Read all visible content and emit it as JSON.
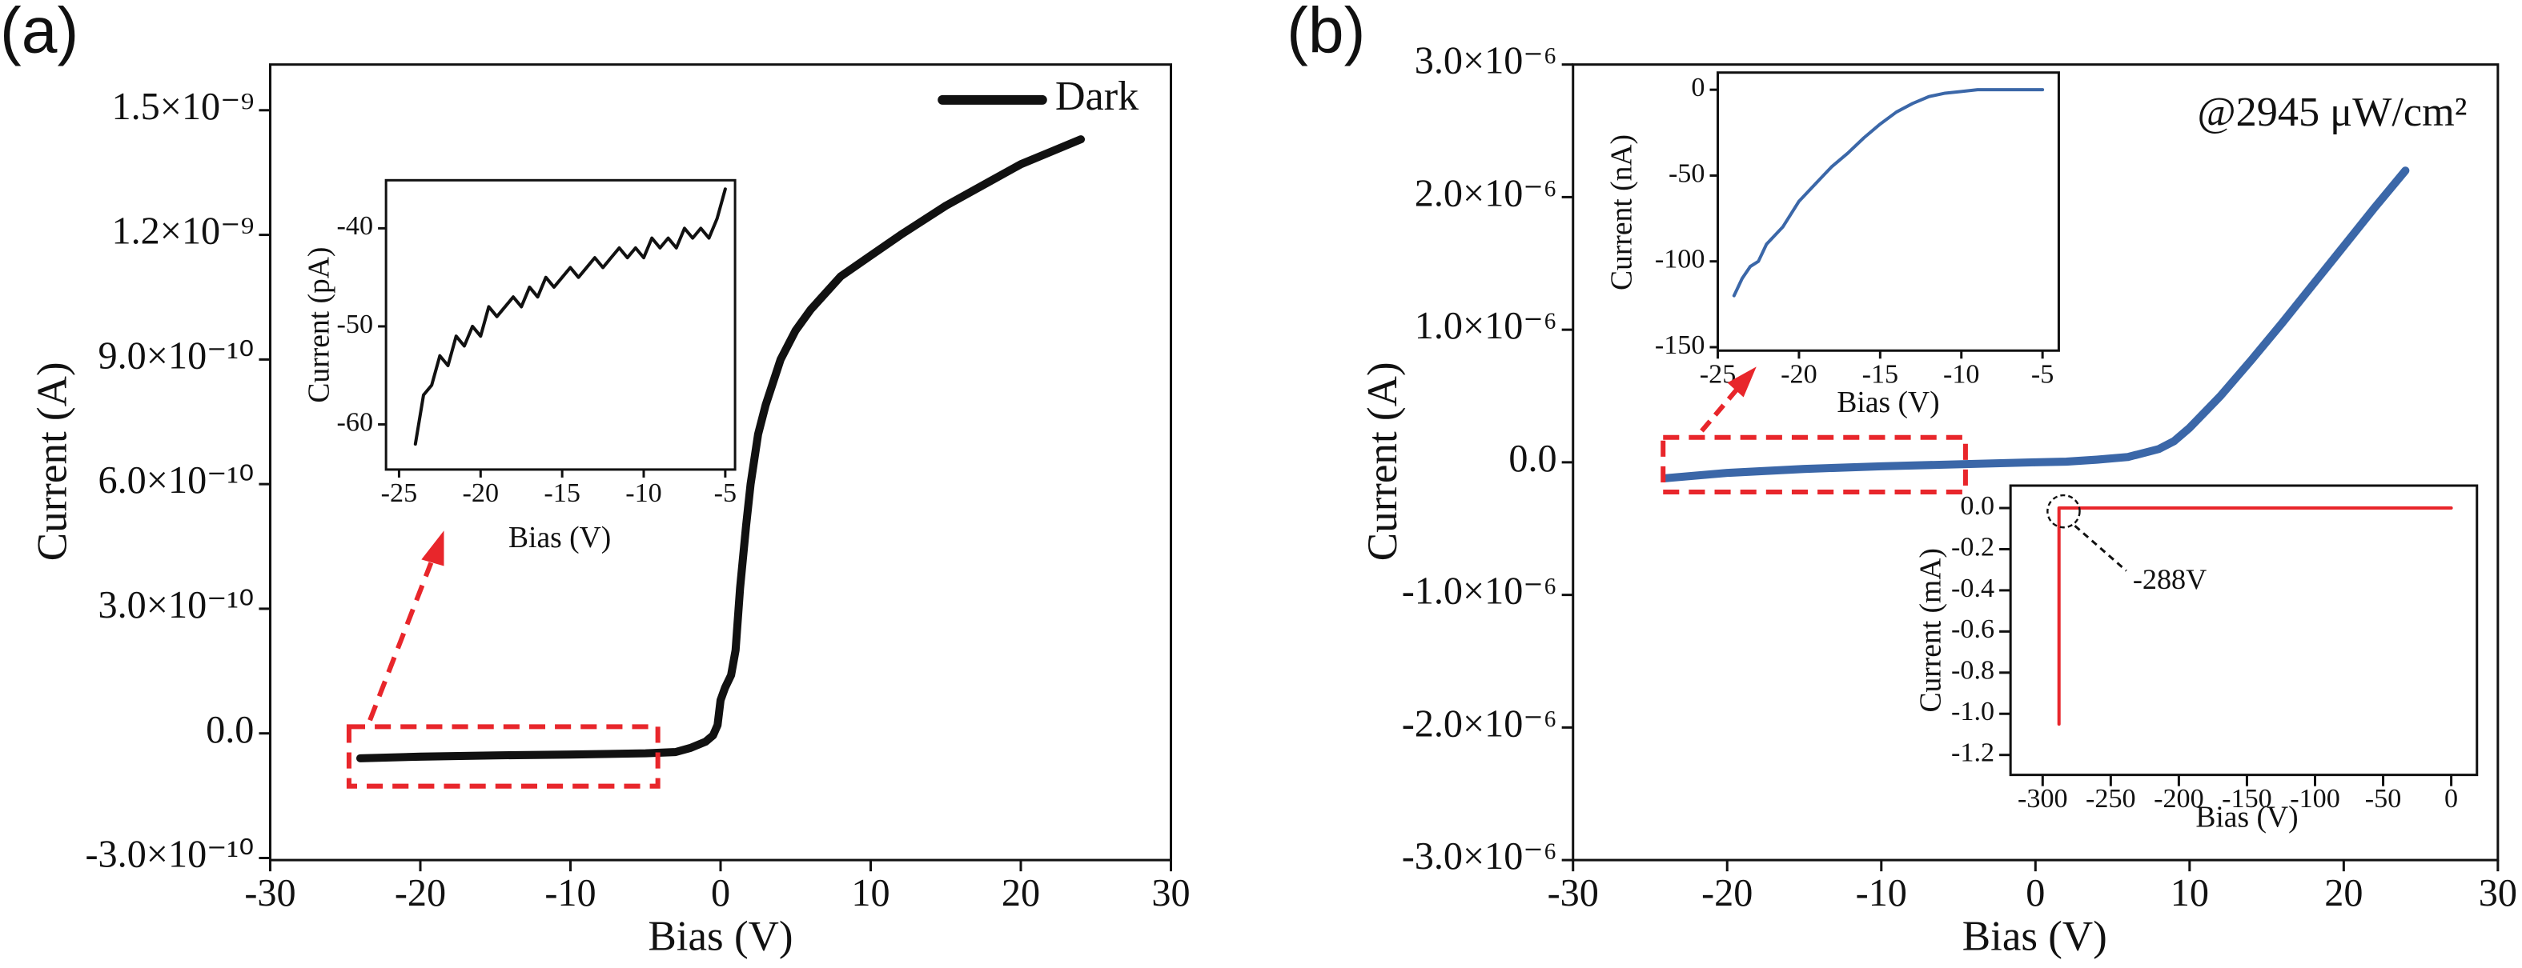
{
  "chart_data": [
    {
      "type": "line",
      "panel_label": "(a)",
      "x_label": "Bias (V)",
      "y_label": "Current (A)",
      "xlim": [
        -30,
        30
      ],
      "ylim": [
        -3.05e-10,
        1.61e-09
      ],
      "xticks": [
        -30,
        -20,
        -10,
        0,
        10,
        20,
        30
      ],
      "yticks": [
        {
          "value": -3e-10,
          "label": "-3.0×10⁻¹⁰"
        },
        {
          "value": 0,
          "label": "0.0"
        },
        {
          "value": 3e-10,
          "label": "3.0×10⁻¹⁰"
        },
        {
          "value": 6e-10,
          "label": "6.0×10⁻¹⁰"
        },
        {
          "value": 9e-10,
          "label": "9.0×10⁻¹⁰"
        },
        {
          "value": 1.2e-09,
          "label": "1.2×10⁻⁹"
        },
        {
          "value": 1.5e-09,
          "label": "1.5×10⁻⁹"
        }
      ],
      "x": [
        -24,
        -20,
        -15,
        -10,
        -5,
        -3,
        -2,
        -1,
        -0.5,
        -0.2,
        0,
        0.3,
        0.7,
        1,
        1.3,
        1.7,
        2,
        2.5,
        3,
        4,
        5,
        6,
        8,
        10,
        12,
        15,
        18,
        20,
        22,
        24
      ],
      "series": [
        {
          "name": "Dark",
          "color": "#111111",
          "values": [
            -6e-11,
            -5.6e-11,
            -5.3e-11,
            -5.1e-11,
            -4.8e-11,
            -4.5e-11,
            -3.5e-11,
            -2e-11,
            -5e-12,
            2e-11,
            8e-11,
            1.1e-10,
            1.4e-10,
            2e-10,
            3.5e-10,
            5e-10,
            6e-10,
            7.2e-10,
            7.9e-10,
            9e-10,
            9.7e-10,
            1.02e-09,
            1.1e-09,
            1.15e-09,
            1.2e-09,
            1.27e-09,
            1.33e-09,
            1.37e-09,
            1.4e-09,
            1.43e-09
          ]
        }
      ]
    },
    {
      "type": "line",
      "x_label": "Bias (V)",
      "y_label": "Current (pA)",
      "xlim": [
        -25.8,
        -4.4
      ],
      "ylim": [
        -64.6,
        -35.1
      ],
      "xticks": [
        -25,
        -20,
        -15,
        -10,
        -5
      ],
      "yticks": [
        -60,
        -50,
        -40
      ],
      "x": [
        -24,
        -23.5,
        -23,
        -22.5,
        -22,
        -21.5,
        -21,
        -20.5,
        -20,
        -19.5,
        -19,
        -18.5,
        -18,
        -17.5,
        -17,
        -16.5,
        -16,
        -15.5,
        -15,
        -14.5,
        -14,
        -13.5,
        -13,
        -12.5,
        -12,
        -11.5,
        -11,
        -10.5,
        -10,
        -9.5,
        -9,
        -8.5,
        -8,
        -7.5,
        -7,
        -6.5,
        -6,
        -5.5,
        -5
      ],
      "series": [
        {
          "color": "#111111",
          "values": [
            -62,
            -57,
            -56,
            -53,
            -54,
            -51,
            -52,
            -50,
            -51,
            -48,
            -49,
            -48,
            -47,
            -48,
            -46,
            -47,
            -45,
            -46,
            -45,
            -44,
            -45,
            -44,
            -43,
            -44,
            -43,
            -42,
            -43,
            -42,
            -43,
            -41,
            -42,
            -41,
            -42,
            -40,
            -41,
            -40,
            -41,
            -39,
            -36
          ]
        }
      ]
    },
    {
      "type": "line",
      "panel_label": "(b)",
      "x_label": "Bias (V)",
      "y_label": "Current (A)",
      "annotation": "@2945 μW/cm²",
      "xlim": [
        -30,
        30
      ],
      "ylim": [
        -3e-06,
        3e-06
      ],
      "xticks": [
        -30,
        -20,
        -10,
        0,
        10,
        20,
        30
      ],
      "yticks": [
        {
          "value": -3e-06,
          "label": "-3.0×10⁻⁶"
        },
        {
          "value": -2e-06,
          "label": "-2.0×10⁻⁶"
        },
        {
          "value": -1e-06,
          "label": "-1.0×10⁻⁶"
        },
        {
          "value": 0,
          "label": "0.0"
        },
        {
          "value": 1e-06,
          "label": "1.0×10⁻⁶"
        },
        {
          "value": 2e-06,
          "label": "2.0×10⁻⁶"
        },
        {
          "value": 3e-06,
          "label": "3.0×10⁻⁶"
        }
      ],
      "x": [
        -24,
        -20,
        -15,
        -10,
        -5,
        0,
        2,
        4,
        6,
        8,
        9,
        10,
        12,
        14,
        16,
        18,
        20,
        22,
        24
      ],
      "series": [
        {
          "color": "#3b67a8",
          "values": [
            -1.2e-07,
            -8e-08,
            -5e-08,
            -3e-08,
            -1.5e-08,
            0,
            5e-09,
            2e-08,
            4e-08,
            1e-07,
            1.6e-07,
            2.6e-07,
            5e-07,
            7.7e-07,
            1.05e-06,
            1.34e-06,
            1.63e-06,
            1.92e-06,
            2.2e-06
          ]
        }
      ]
    },
    {
      "type": "line",
      "x_label": "Bias (V)",
      "y_label": "Current (nA)",
      "xlim": [
        -25,
        -4
      ],
      "ylim": [
        -152,
        10
      ],
      "xticks": [
        -25,
        -20,
        -15,
        -10,
        -5
      ],
      "yticks": [
        -150,
        -100,
        -50,
        0
      ],
      "x": [
        -24,
        -23.5,
        -23,
        -22.5,
        -22,
        -21.5,
        -21,
        -20,
        -19,
        -18,
        -17,
        -16,
        -15,
        -14,
        -13,
        -12,
        -11,
        -10,
        -9,
        -8,
        -6,
        -5
      ],
      "series": [
        {
          "color": "#3b67a8",
          "values": [
            -120,
            -110,
            -103,
            -100,
            -90,
            -85,
            -80,
            -65,
            -55,
            -45,
            -37,
            -28,
            -20,
            -13,
            -8,
            -4,
            -2,
            -1,
            0,
            0,
            0,
            0
          ]
        }
      ]
    },
    {
      "type": "line",
      "x_label": "Bias (V)",
      "y_label": "Current (mA)",
      "annotation": "-288V",
      "xlim": [
        -323.6,
        18.9
      ],
      "ylim": [
        -1.297,
        0.109
      ],
      "xticks": [
        -300,
        -250,
        -200,
        -150,
        -100,
        -50,
        0
      ],
      "yticks": [
        -1.2,
        {
          "value": -1.0,
          "label": "-1.0"
        },
        -0.8,
        -0.6,
        -0.4,
        -0.2,
        {
          "value": 0,
          "label": "0.0"
        }
      ],
      "x": [
        -288,
        -288,
        0
      ],
      "series": [
        {
          "color": "#e8262b",
          "values": [
            -1.05,
            0,
            0
          ]
        }
      ]
    }
  ]
}
